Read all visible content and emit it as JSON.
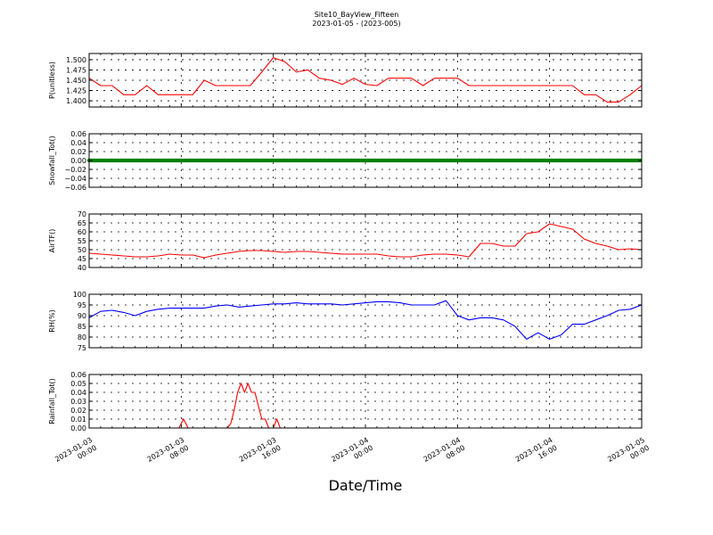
{
  "figure": {
    "title_line1": "Site10_BayView_Fifteen",
    "title_line2": "2023-01-05 - (2023-005)",
    "xlabel": "Date/Time",
    "x_ticks": [
      {
        "l1": "2023-01-03",
        "l2": "00:00"
      },
      {
        "l1": "2023-01-03",
        "l2": "08:00"
      },
      {
        "l1": "2023-01-03",
        "l2": "16:00"
      },
      {
        "l1": "2023-01-04",
        "l2": "00:00"
      },
      {
        "l1": "2023-01-04",
        "l2": "08:00"
      },
      {
        "l1": "2023-01-04",
        "l2": "16:00"
      },
      {
        "l1": "2023-01-05",
        "l2": "00:00"
      }
    ]
  },
  "chart_data": [
    {
      "type": "line",
      "ylabel": "P(unitless)",
      "ylim": [
        1.385,
        1.515
      ],
      "yticks": [
        "1.400",
        "1.425",
        "1.450",
        "1.475",
        "1.500"
      ],
      "ytick_values": [
        1.4,
        1.425,
        1.45,
        1.475,
        1.5
      ],
      "color": "#ff0000",
      "marker": false,
      "x_hours": [
        0,
        1,
        2,
        3,
        4,
        5,
        6,
        7,
        8,
        9,
        10,
        11,
        12,
        13,
        14,
        15,
        16,
        17,
        18,
        19,
        20,
        21,
        22,
        23,
        24,
        25,
        26,
        27,
        28,
        29,
        30,
        31,
        32,
        33,
        34,
        35,
        36,
        37,
        38,
        39,
        40,
        41,
        42,
        43,
        44,
        45,
        46,
        47,
        48
      ],
      "values": [
        1.455,
        1.437,
        1.437,
        1.415,
        1.415,
        1.437,
        1.415,
        1.415,
        1.415,
        1.415,
        1.45,
        1.437,
        1.437,
        1.437,
        1.437,
        1.47,
        1.505,
        1.495,
        1.47,
        1.475,
        1.455,
        1.45,
        1.44,
        1.455,
        1.44,
        1.437,
        1.455,
        1.455,
        1.455,
        1.437,
        1.455,
        1.455,
        1.455,
        1.437,
        1.437,
        1.437,
        1.437,
        1.437,
        1.437,
        1.437,
        1.437,
        1.437,
        1.437,
        1.415,
        1.415,
        1.397,
        1.397,
        1.415,
        1.437
      ]
    },
    {
      "type": "scatter",
      "ylabel": "Snowfall_Tot()",
      "ylim": [
        -0.06,
        0.06
      ],
      "yticks": [
        "−0.06",
        "−0.04",
        "−0.02",
        "0.00",
        "0.02",
        "0.04",
        "0.06"
      ],
      "ytick_values": [
        -0.06,
        -0.04,
        -0.02,
        0.0,
        0.02,
        0.04,
        0.06
      ],
      "color": "#008000",
      "marker": true,
      "x_hours": [
        0,
        1,
        2,
        3,
        4,
        5,
        6,
        7,
        8,
        9,
        10,
        11,
        12,
        13,
        14,
        15,
        16,
        17,
        18,
        19,
        20,
        21,
        22,
        23,
        24,
        25,
        26,
        27,
        28,
        29,
        30,
        31,
        32,
        33,
        34,
        35,
        36,
        37,
        38,
        39,
        40,
        41,
        42,
        43,
        44,
        45,
        46,
        47,
        48
      ],
      "values": [
        0,
        0,
        0,
        0,
        0,
        0,
        0,
        0,
        0,
        0,
        0,
        0,
        0,
        0,
        0,
        0,
        0,
        0,
        0,
        0,
        0,
        0,
        0,
        0,
        0,
        0,
        0,
        0,
        0,
        0,
        0,
        0,
        0,
        0,
        0,
        0,
        0,
        0,
        0,
        0,
        0,
        0,
        0,
        0,
        0,
        0,
        0,
        0,
        0
      ]
    },
    {
      "type": "line",
      "ylabel": "AirTF()",
      "ylim": [
        40,
        70
      ],
      "yticks": [
        "40",
        "45",
        "50",
        "55",
        "60",
        "65",
        "70"
      ],
      "ytick_values": [
        40,
        45,
        50,
        55,
        60,
        65,
        70
      ],
      "color": "#ff0000",
      "marker": false,
      "x_hours": [
        0,
        1,
        2,
        3,
        4,
        5,
        6,
        7,
        8,
        9,
        10,
        11,
        12,
        13,
        14,
        15,
        16,
        17,
        18,
        19,
        20,
        21,
        22,
        23,
        24,
        25,
        26,
        27,
        28,
        29,
        30,
        31,
        32,
        33,
        34,
        35,
        36,
        37,
        38,
        39,
        40,
        41,
        42,
        43,
        44,
        45,
        46,
        47,
        48
      ],
      "values": [
        48,
        47.5,
        47,
        46.5,
        46,
        46,
        46.5,
        47.5,
        47,
        47,
        45.5,
        47,
        48,
        49,
        49.5,
        49.5,
        49,
        48.5,
        49,
        49,
        48.5,
        48,
        47.5,
        47.5,
        47.5,
        47.5,
        46.5,
        46,
        46,
        47,
        47.5,
        47.5,
        47,
        46,
        53.5,
        53.5,
        52,
        52,
        59,
        60,
        64.5,
        63,
        61.5,
        56,
        53.5,
        52,
        50,
        50.5,
        50
      ]
    },
    {
      "type": "line",
      "ylabel": "RH(%)",
      "ylim": [
        75,
        100
      ],
      "yticks": [
        "75",
        "80",
        "85",
        "90",
        "95",
        "100"
      ],
      "ytick_values": [
        75,
        80,
        85,
        90,
        95,
        100
      ],
      "color": "#0000ff",
      "marker": false,
      "x_hours": [
        0,
        1,
        2,
        3,
        4,
        5,
        6,
        7,
        8,
        9,
        10,
        11,
        12,
        13,
        14,
        15,
        16,
        17,
        18,
        19,
        20,
        21,
        22,
        23,
        24,
        25,
        26,
        27,
        28,
        29,
        30,
        31,
        32,
        33,
        34,
        35,
        36,
        37,
        38,
        39,
        40,
        41,
        42,
        43,
        44,
        45,
        46,
        47,
        48
      ],
      "values": [
        89,
        92,
        92.5,
        91.5,
        90,
        92,
        93,
        93.5,
        93.5,
        93.5,
        93.5,
        94.5,
        95,
        94,
        94.5,
        95,
        95.5,
        95.5,
        96,
        95.5,
        95.5,
        95.5,
        95,
        95.5,
        96,
        96.5,
        96.5,
        96,
        95,
        95,
        95,
        97,
        90,
        88,
        89,
        89,
        88,
        85,
        79,
        82,
        79,
        81,
        86,
        86,
        88,
        90,
        92.5,
        93,
        95
      ]
    },
    {
      "type": "line",
      "ylabel": "Rainfall_Tot()",
      "ylim": [
        0,
        0.06
      ],
      "yticks": [
        "0.00",
        "0.01",
        "0.02",
        "0.03",
        "0.04",
        "0.05",
        "0.06"
      ],
      "ytick_values": [
        0,
        0.01,
        0.02,
        0.03,
        0.04,
        0.05,
        0.06
      ],
      "color": "#ff0000",
      "marker": false,
      "x_hours": [
        0,
        1,
        2,
        3,
        4,
        5,
        6,
        7,
        7.8,
        8.2,
        8.6,
        9,
        10,
        11,
        12,
        12.3,
        12.6,
        12.9,
        13.2,
        13.5,
        13.8,
        14.1,
        14.4,
        14.7,
        15,
        15.3,
        15.6,
        16,
        16.3,
        16.6,
        17,
        18,
        24,
        32,
        40,
        48
      ],
      "values": [
        0,
        0,
        0,
        0,
        0,
        0,
        0,
        0,
        0,
        0.01,
        0,
        0,
        0,
        0,
        0,
        0.005,
        0.02,
        0.04,
        0.05,
        0.04,
        0.05,
        0.04,
        0.04,
        0.025,
        0.01,
        0.01,
        0,
        0,
        0.01,
        0,
        0,
        0,
        0,
        0,
        0,
        0
      ]
    }
  ]
}
